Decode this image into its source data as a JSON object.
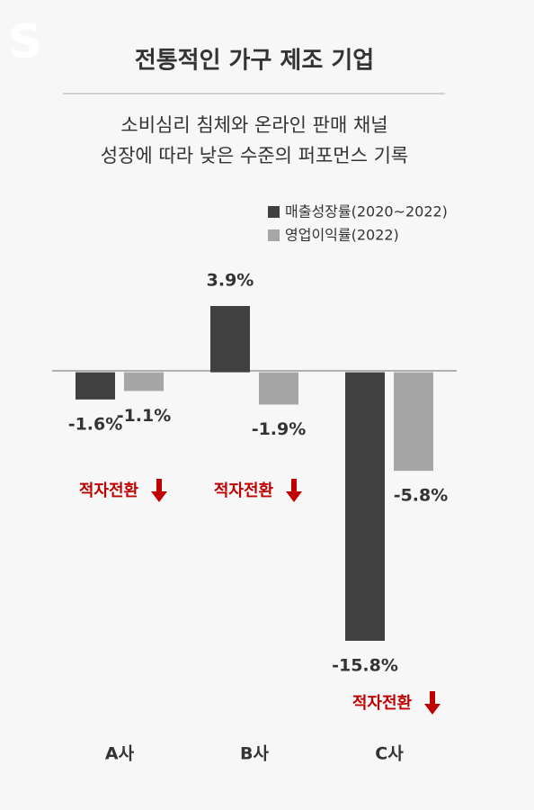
{
  "logo": "S",
  "chart_data": {
    "type": "bar",
    "title": "전통적인 가구 제조 기업",
    "subtitle": [
      "소비심리 침체와 온라인 판매 채널",
      "성장에 따라 낮은 수준의 퍼포먼스 기록"
    ],
    "categories": [
      "A사",
      "B사",
      "C사"
    ],
    "series": [
      {
        "name": "매출성장률(2020~2022)",
        "color": "#404040",
        "values": [
          -1.6,
          3.9,
          -15.8
        ],
        "value_labels": [
          "-1.6%",
          "3.9%",
          "-15.8%"
        ]
      },
      {
        "name": "영업이익률(2022)",
        "color": "#a6a6a6",
        "values": [
          -1.1,
          -1.9,
          -5.8
        ],
        "value_labels": [
          "-1.1%",
          "-1.9%",
          "-5.8%"
        ]
      }
    ],
    "annotations": [
      "적자전환",
      "적자전환",
      "적자전환"
    ],
    "annotation_color": "#c00000",
    "legend": "top-right"
  }
}
